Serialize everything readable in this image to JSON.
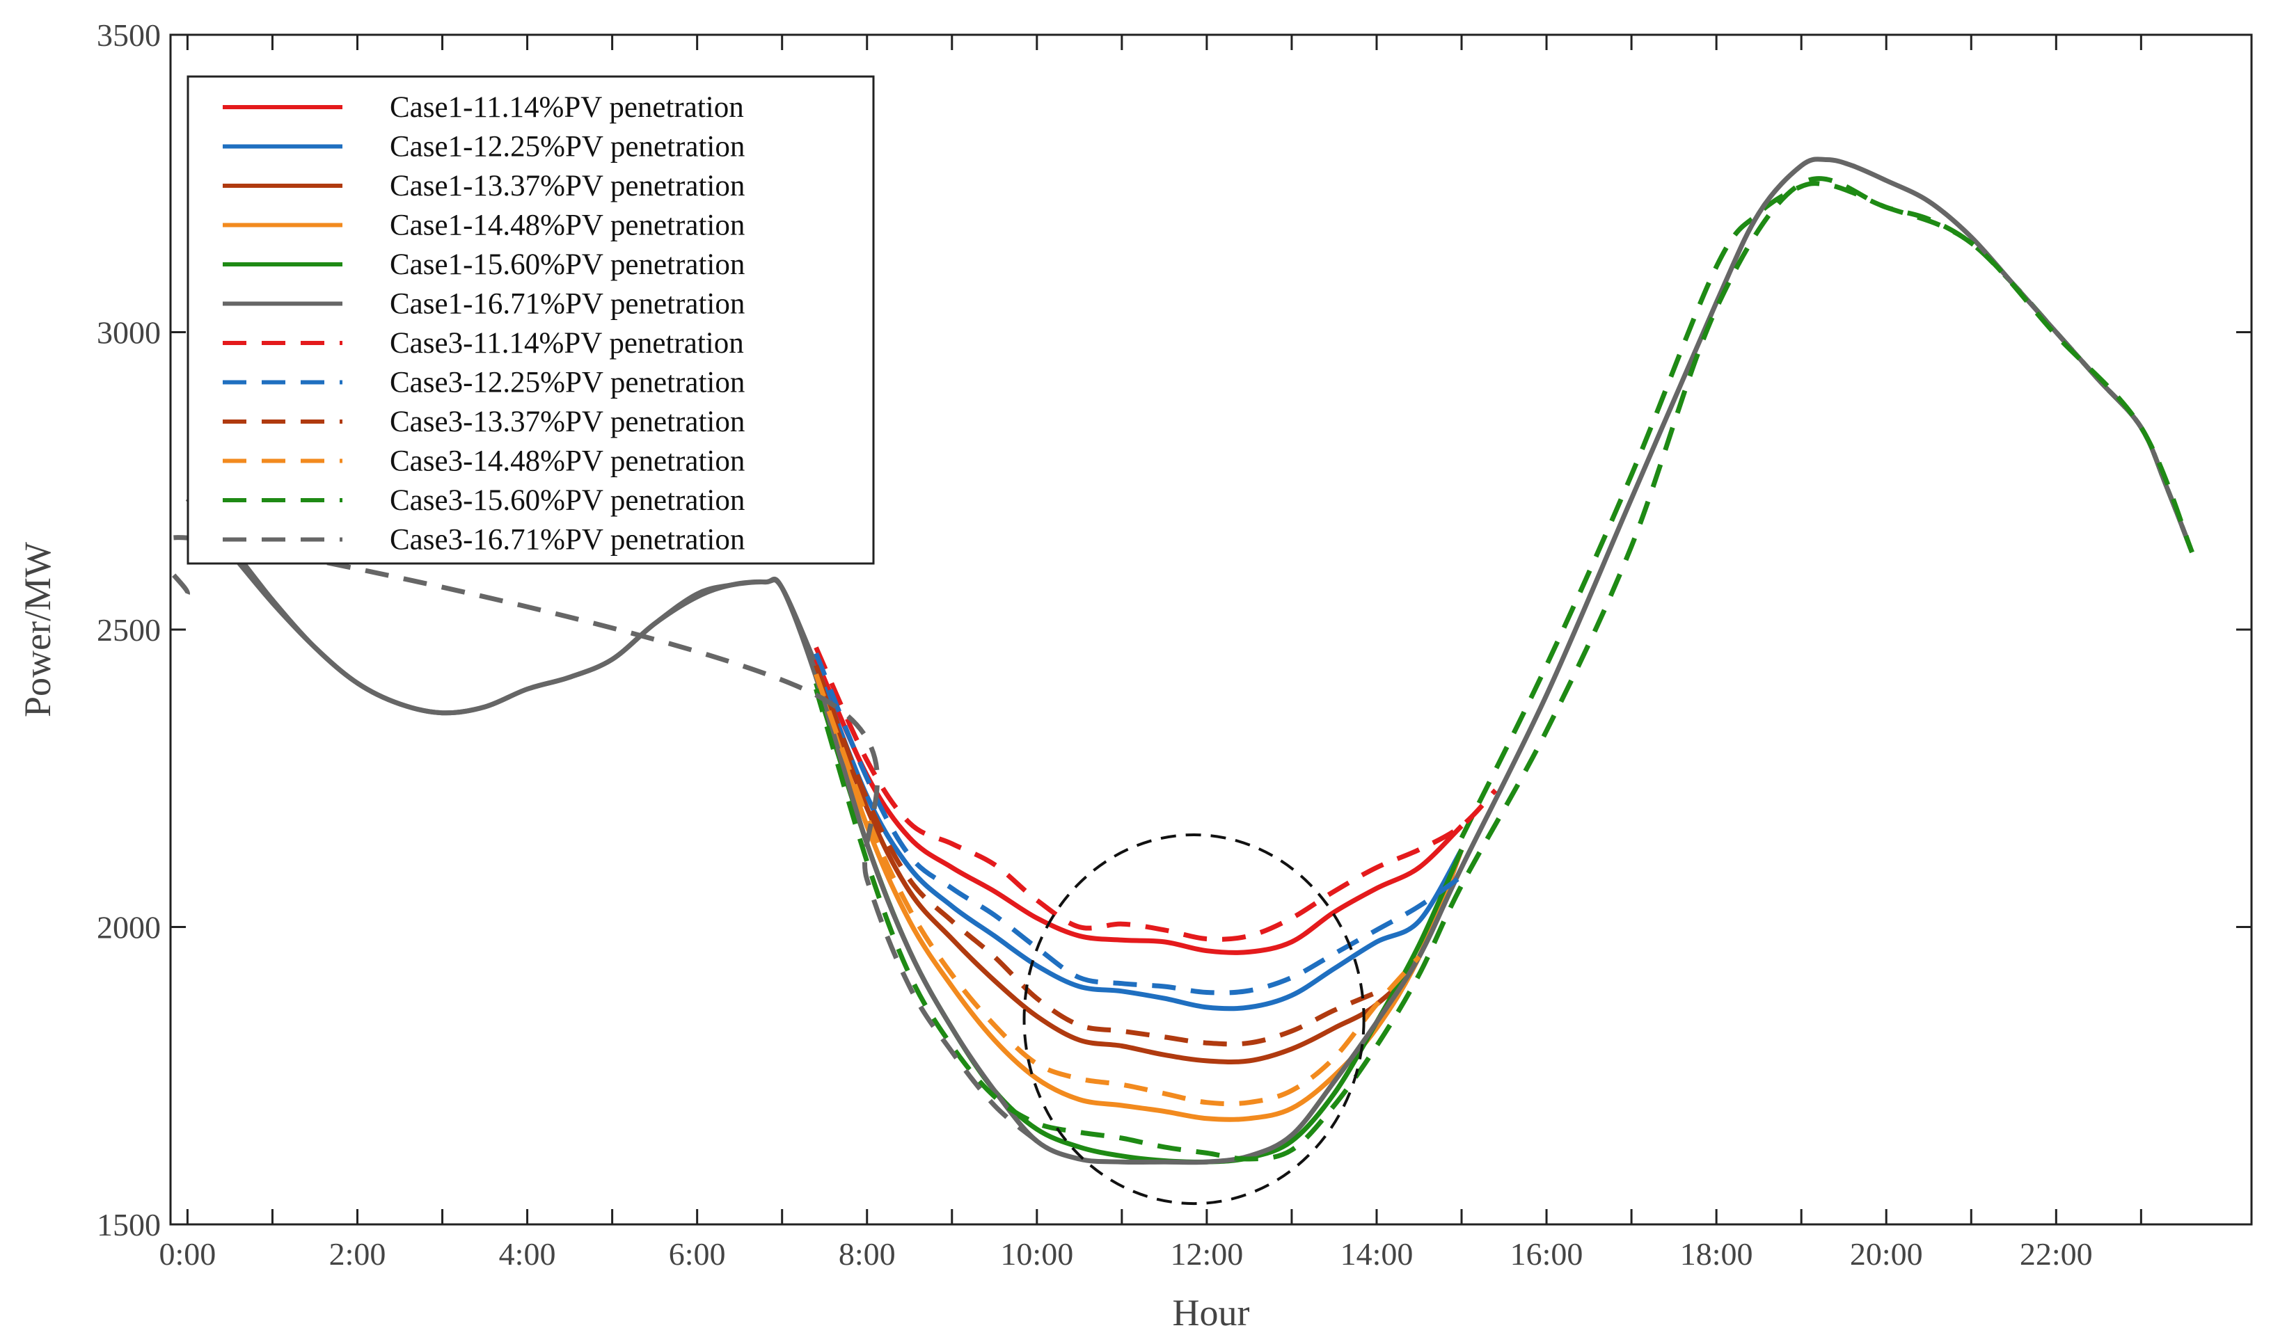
{
  "chart_data": {
    "type": "line",
    "xlabel": "Hour",
    "ylabel": "Power/MW",
    "xlim": [
      -0.2,
      24.3
    ],
    "ylim": [
      1500,
      3500
    ],
    "x_ticks": [
      0,
      2,
      4,
      6,
      8,
      10,
      12,
      14,
      16,
      18,
      20,
      22
    ],
    "x_tick_labels": [
      "0:00",
      "2:00",
      "4:00",
      "6:00",
      "8:00",
      "10:00",
      "12:00",
      "14:00",
      "16:00",
      "18:00",
      "20:00",
      "22:00"
    ],
    "x_minor_ticks": [
      1,
      3,
      5,
      7,
      9,
      11,
      13,
      15,
      17,
      19,
      21,
      23
    ],
    "y_ticks": [
      1500,
      2000,
      2500,
      3000,
      3500
    ],
    "y_tick_labels": [
      "1500",
      "2000",
      "2500",
      "3000",
      "3500"
    ],
    "grid": false,
    "legend_position": "top-left",
    "annotation": {
      "shape": "dashed-ellipse",
      "center_x": 11.85,
      "center_y": 1845,
      "radius_x_hours": 2.0,
      "radius_y_mw": 310
    },
    "series": [
      {
        "name": "Case1-11.14%PV penetration",
        "color": "#e41a1c",
        "dash": "solid",
        "x": [
          7.4,
          8.0,
          8.5,
          9.0,
          9.5,
          10.0,
          10.5,
          11.0,
          11.5,
          12.0,
          12.5,
          13.0,
          13.5,
          14.0,
          14.5,
          15.0
        ],
        "y": [
          2450,
          2255,
          2150,
          2100,
          2060,
          2015,
          1985,
          1978,
          1975,
          1960,
          1958,
          1975,
          2025,
          2065,
          2100,
          2170
        ]
      },
      {
        "name": "Case1-12.25%PV penetration",
        "color": "#1f6fc0",
        "dash": "solid",
        "x": [
          7.4,
          8.0,
          8.5,
          9.0,
          9.5,
          10.0,
          10.5,
          11.0,
          11.5,
          12.0,
          12.5,
          13.0,
          13.5,
          14.0,
          14.5,
          15.0
        ],
        "y": [
          2440,
          2220,
          2100,
          2035,
          1985,
          1935,
          1900,
          1892,
          1880,
          1865,
          1865,
          1885,
          1930,
          1975,
          2010,
          2130
        ]
      },
      {
        "name": "Case1-13.37%PV penetration",
        "color": "#b03a0f",
        "dash": "solid",
        "x": [
          7.4,
          8.0,
          8.5,
          9.0,
          9.5,
          10.0,
          10.5,
          11.0,
          11.5,
          12.0,
          12.5,
          13.0,
          13.5,
          14.0,
          14.5,
          15.0
        ],
        "y": [
          2430,
          2200,
          2060,
          1980,
          1910,
          1850,
          1810,
          1800,
          1785,
          1775,
          1775,
          1795,
          1830,
          1870,
          1950,
          2130
        ]
      },
      {
        "name": "Case1-14.48%PV penetration",
        "color": "#f28a1e",
        "dash": "solid",
        "x": [
          7.4,
          8.0,
          8.5,
          9.0,
          9.5,
          10.0,
          10.5,
          11.0,
          11.5,
          12.0,
          12.5,
          13.0,
          13.5,
          14.0,
          14.5,
          15.0
        ],
        "y": [
          2420,
          2170,
          2010,
          1900,
          1810,
          1745,
          1710,
          1700,
          1690,
          1678,
          1678,
          1695,
          1750,
          1830,
          1950,
          2130
        ]
      },
      {
        "name": "Case1-15.60%PV penetration",
        "color": "#1e8a14",
        "dash": "solid",
        "x": [
          7.4,
          8.0,
          8.5,
          9.0,
          9.5,
          10.0,
          10.5,
          11.0,
          11.5,
          12.0,
          12.5,
          13.0,
          13.5,
          14.0,
          14.5,
          15.0
        ],
        "y": [
          2410,
          2140,
          1960,
          1830,
          1725,
          1660,
          1630,
          1615,
          1607,
          1605,
          1612,
          1640,
          1720,
          1840,
          1970,
          2130
        ]
      },
      {
        "name": "Case1-16.71%PV penetration",
        "color": "#666666",
        "dash": "solid",
        "x": [
          0,
          0.5,
          1.0,
          1.5,
          2.0,
          2.5,
          3.0,
          3.5,
          4.0,
          4.5,
          5.0,
          5.5,
          6.0,
          6.4,
          6.8,
          7.0,
          7.4,
          8.0,
          8.5,
          9.0,
          9.5,
          10.0,
          10.5,
          11.0,
          11.5,
          12.0,
          12.5,
          13.0,
          13.5,
          14.0,
          14.5,
          15.0,
          16.0,
          17.0,
          18.0,
          18.5,
          19.0,
          19.3,
          19.6,
          20.0,
          20.5,
          21.0,
          21.5,
          22.0,
          22.5,
          23.0,
          23.3,
          23.6
        ],
        "y": [
          2720,
          2640,
          2550,
          2470,
          2410,
          2375,
          2360,
          2370,
          2400,
          2420,
          2450,
          2510,
          2555,
          2575,
          2580,
          2570,
          2420,
          2140,
          1960,
          1830,
          1725,
          1640,
          1610,
          1605,
          1605,
          1605,
          1615,
          1650,
          1740,
          1840,
          1950,
          2100,
          2390,
          2720,
          3050,
          3200,
          3280,
          3290,
          3280,
          3255,
          3220,
          3160,
          3080,
          3000,
          2920,
          2840,
          2740,
          2630
        ]
      },
      {
        "name": "Case3-11.14%PV penetration",
        "color": "#e41a1c",
        "dash": "dashed",
        "x": [
          7.4,
          8.0,
          8.5,
          9.0,
          9.5,
          10.0,
          10.5,
          11.0,
          11.5,
          12.0,
          12.5,
          13.0,
          13.5,
          14.0,
          14.5,
          15.0,
          15.4
        ],
        "y": [
          2470,
          2280,
          2175,
          2140,
          2105,
          2045,
          2000,
          2005,
          1995,
          1980,
          1985,
          2015,
          2060,
          2100,
          2130,
          2170,
          2230
        ]
      },
      {
        "name": "Case3-12.25%PV penetration",
        "color": "#1f6fc0",
        "dash": "dashed",
        "x": [
          7.4,
          8.0,
          8.5,
          9.0,
          9.5,
          10.0,
          10.5,
          11.0,
          11.5,
          12.0,
          12.5,
          13.0,
          13.5,
          14.0,
          14.5,
          15.0
        ],
        "y": [
          2460,
          2250,
          2120,
          2065,
          2020,
          1965,
          1915,
          1905,
          1900,
          1890,
          1893,
          1915,
          1955,
          1995,
          2035,
          2085
        ]
      },
      {
        "name": "Case3-13.37%PV penetration",
        "color": "#b03a0f",
        "dash": "dashed",
        "x": [
          7.4,
          8.0,
          8.5,
          9.0,
          9.5,
          10.0,
          10.5,
          11.0,
          11.5,
          12.0,
          12.5,
          13.0,
          13.5,
          14.0
        ],
        "y": [
          2440,
          2215,
          2080,
          2010,
          1950,
          1880,
          1835,
          1825,
          1815,
          1805,
          1805,
          1825,
          1860,
          1890
        ]
      },
      {
        "name": "Case3-14.48%PV penetration",
        "color": "#f28a1e",
        "dash": "dashed",
        "x": [
          7.4,
          8.0,
          8.5,
          9.0,
          9.5,
          10.0,
          10.5,
          11.0,
          11.5,
          12.0,
          12.5,
          13.0,
          13.5,
          14.0,
          14.5
        ],
        "y": [
          2425,
          2185,
          2030,
          1920,
          1835,
          1770,
          1745,
          1735,
          1720,
          1705,
          1705,
          1725,
          1780,
          1870,
          1950
        ]
      },
      {
        "name": "Case3-15.60%PV penetration",
        "color": "#1e8a14",
        "dash": "dashed",
        "x": [
          7.4,
          8.0,
          8.5,
          9.0,
          9.5,
          10.0,
          10.5,
          11.0,
          11.5,
          12.0,
          12.5,
          13.0,
          13.5,
          14.0,
          14.5,
          15.0,
          16.0,
          17.0,
          18.0,
          19.0,
          20.0,
          21.0,
          22.0,
          23.0,
          23.6
        ],
        "y": [
          2400,
          2110,
          1920,
          1800,
          1715,
          1670,
          1655,
          1645,
          1630,
          1620,
          1610,
          1625,
          1700,
          1800,
          1920,
          2070,
          2330,
          2640,
          3040,
          3250,
          3210,
          3150,
          2995,
          2840,
          2630
        ]
      },
      {
        "name": "Case3-16.71%PV penetration",
        "color": "#666666",
        "dash": "dashed",
        "x": [
          0,
          0.25,
          7.4,
          8.0,
          8.5,
          9.0,
          9.5,
          10.0
        ],
        "y": [
          2560,
          2650,
          2390,
          2080,
          1900,
          1790,
          1700,
          1640
        ]
      }
    ],
    "shared_prefix": {
      "x": [
        0.3,
        0.5,
        1.0,
        1.5,
        2.0,
        2.5,
        3.0,
        3.5,
        4.0,
        4.5,
        5.0,
        5.5,
        6.0,
        6.4,
        6.8,
        7.0,
        7.4
      ],
      "y": [
        2660,
        2630,
        2545,
        2470,
        2410,
        2375,
        2360,
        2370,
        2400,
        2420,
        2450,
        2510,
        2560,
        2575,
        2580,
        2570,
        2440
      ]
    },
    "shared_evening": {
      "x": [
        15.0,
        16.0,
        17.0,
        18.0,
        18.5,
        19.0,
        19.3,
        19.6,
        20.0,
        20.5,
        21.0,
        21.5,
        22.0,
        22.5,
        23.0,
        23.3,
        23.6
      ],
      "y": [
        2150,
        2440,
        2760,
        3110,
        3200,
        3245,
        3248,
        3235,
        3210,
        3190,
        3150,
        3080,
        3000,
        2920,
        2840,
        2740,
        2630
      ]
    }
  }
}
